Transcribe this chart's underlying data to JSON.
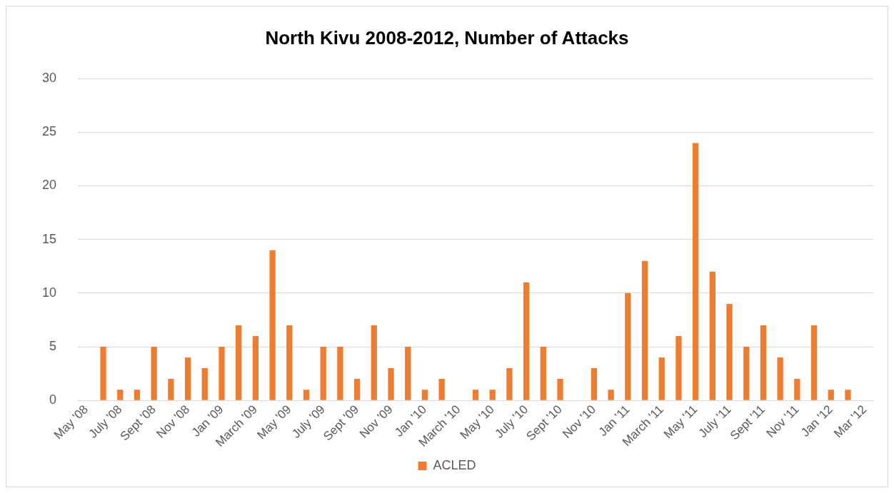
{
  "chart_data": {
    "type": "bar",
    "title": "North Kivu 2008-2012, Number of Attacks",
    "categories": [
      "May '08",
      null,
      "July '08",
      null,
      "Sept '08",
      null,
      "Nov '08",
      null,
      "Jan '09",
      null,
      "March '09",
      null,
      "May '09",
      null,
      "July '09",
      null,
      "Sept '09",
      null,
      "Nov '09",
      null,
      "Jan '10",
      null,
      "March '10",
      null,
      "May '10",
      null,
      "July '10",
      null,
      "Sept '10",
      null,
      "Nov '10",
      null,
      "Jan '11",
      null,
      "March '11",
      null,
      "May '11",
      null,
      "July '11",
      null,
      "Sept '11",
      null,
      "Nov '11",
      null,
      "Jan '12",
      null,
      "Mar '12"
    ],
    "series": [
      {
        "name": "ACLED",
        "color": "#ed7d31",
        "values": [
          0,
          5,
          1,
          1,
          5,
          2,
          4,
          3,
          5,
          7,
          6,
          14,
          7,
          1,
          5,
          5,
          2,
          7,
          3,
          5,
          1,
          2,
          0,
          1,
          1,
          3,
          11,
          5,
          2,
          0,
          3,
          1,
          10,
          13,
          4,
          6,
          24,
          12,
          9,
          5,
          7,
          4,
          2,
          7,
          1,
          1,
          0
        ]
      }
    ],
    "ylim": [
      0,
      30
    ],
    "yticks": [
      0,
      5,
      10,
      15,
      20,
      25,
      30
    ],
    "grid": "y",
    "legend": "bottom"
  }
}
